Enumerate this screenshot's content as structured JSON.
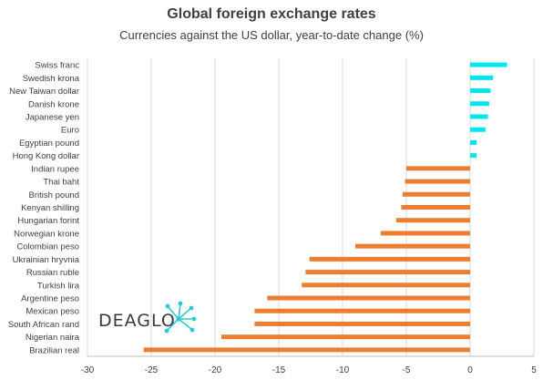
{
  "title": "Global foreign exchange rates",
  "subtitle": "Currencies against the US dollar, year-to-date change (%)",
  "logo": {
    "text_main": "DEAGLO",
    "text_tail": "",
    "text": "DEAGLO",
    "icon": "starburst-x-icon",
    "color": "#3a3a3a",
    "accent": "#2ec9d6"
  },
  "colors": {
    "positive": "#00e5f0",
    "negative": "#ed7d31",
    "grid": "#d9d9d9",
    "axis": "#bfbfbf"
  },
  "chart_data": {
    "type": "bar",
    "orientation": "horizontal",
    "title": "Global foreign exchange rates",
    "subtitle": "Currencies against the US dollar, year-to-date change (%)",
    "xlabel": "",
    "ylabel": "",
    "xlim": [
      -30,
      5
    ],
    "xticks": [
      -30,
      -25,
      -20,
      -15,
      -10,
      -5,
      0,
      5
    ],
    "grid": true,
    "categories": [
      "Swiss franc",
      "Swedish krona",
      "New Taiwan dollar",
      "Danish krone",
      "Japanese yen",
      "Euro",
      "Egyptian pound",
      "Hong Kong dollar",
      "Indian rupee",
      "Thai baht",
      "British pound",
      "Kenyan shilling",
      "Hungarian forint",
      "Norwegian krone",
      "Colombian peso",
      "Ukrainian hryvnia",
      "Russian ruble",
      "Turkish lira",
      "Argentine peso",
      "Mexican peso",
      "South African rand",
      "Nigerian naira",
      "Brazilian real"
    ],
    "values": [
      2.9,
      1.8,
      1.6,
      1.5,
      1.4,
      1.2,
      0.5,
      0.5,
      -5.0,
      -5.1,
      -5.3,
      -5.4,
      -5.8,
      -7.0,
      -9.0,
      -12.6,
      -12.9,
      -13.2,
      -15.9,
      -16.9,
      -16.9,
      -19.5,
      -25.6
    ]
  }
}
